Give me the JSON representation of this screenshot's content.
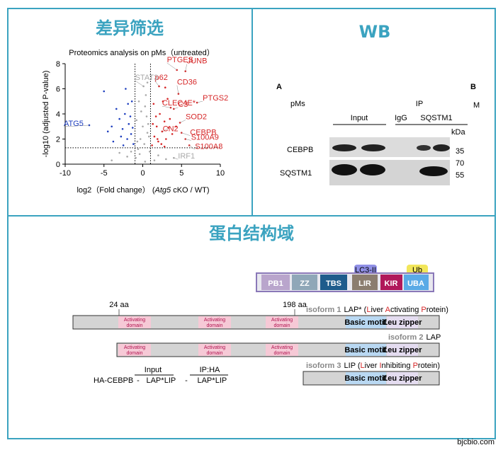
{
  "panels": {
    "volcano_title": "差异筛选",
    "wb_title": "WB",
    "domain_title": "蛋白结构域"
  },
  "chart_data": {
    "type": "scatter",
    "title": "Proteomics analysis on pMs（untreated）",
    "x_label": [
      "log2（Fold change）  (",
      "Atg5",
      " cKO / WT)"
    ],
    "y_label": "-log10 (adjusted P-value)",
    "xlim": [
      -10,
      10
    ],
    "ylim": [
      0,
      8
    ],
    "xticks": [
      -10,
      -5,
      0,
      5,
      10
    ],
    "yticks": [
      0,
      2,
      4,
      6,
      8
    ],
    "thresholds": {
      "x": [
        -1,
        1
      ],
      "y": 1.3
    },
    "series": [
      {
        "color": "#d62728",
        "x": [
          1.2,
          1.5,
          1.8,
          2.0,
          2.2,
          2.5,
          2.8,
          3.0,
          3.2,
          3.5,
          3.8,
          4.0,
          4.3,
          4.6,
          5.0,
          5.5,
          6.0,
          1.4,
          1.7,
          2.1,
          2.6,
          3.3,
          2.9,
          1.3,
          1.9,
          2.4,
          3.6,
          4.8,
          5.5,
          7.0,
          2.8,
          4.4
        ],
        "values": [
          1.5,
          2.2,
          3.0,
          1.8,
          4.0,
          2.6,
          3.4,
          2.0,
          5.2,
          3.6,
          2.4,
          4.4,
          3.0,
          5.6,
          2.5,
          7.4,
          1.5,
          4.8,
          3.8,
          6.2,
          5.0,
          2.9,
          6.1,
          3.2,
          2.0,
          1.6,
          4.5,
          3.3,
          2.0,
          4.9,
          1.4,
          7.5
        ]
      },
      {
        "color": "#1f3fbf",
        "x": [
          -1.2,
          -1.5,
          -1.8,
          -2.0,
          -2.3,
          -2.6,
          -3.0,
          -3.4,
          -4.0,
          -5.0,
          -1.4,
          -1.9,
          -2.8,
          -3.8,
          -1.6,
          -2.2,
          -4.5,
          -1.3,
          -2.5,
          -6.9
        ],
        "values": [
          1.6,
          2.4,
          3.2,
          2.0,
          4.0,
          2.8,
          3.6,
          4.4,
          3.0,
          5.8,
          5.0,
          4.8,
          2.2,
          1.8,
          3.8,
          6.0,
          2.6,
          2.9,
          1.5,
          3.1
        ]
      },
      {
        "color": "#a9a9a9",
        "x": [
          -0.9,
          -0.6,
          -0.3,
          0,
          0.3,
          0.6,
          0.9,
          -0.8,
          -0.4,
          0.2,
          0.5,
          0.8,
          -2,
          -3,
          2,
          3,
          -1.5,
          1.5,
          -0.5,
          0.4,
          0.1,
          -0.2,
          0.7,
          -0.7,
          0.3,
          4,
          -4,
          0.6
        ],
        "values": [
          0.5,
          1.2,
          2.0,
          3.0,
          4.6,
          2.5,
          1.0,
          3.5,
          0.8,
          1.6,
          3.8,
          2.2,
          0.6,
          0.9,
          0.7,
          0.4,
          1.0,
          0.3,
          5.0,
          5.5,
          6.2,
          4.2,
          3.2,
          1.8,
          0.2,
          0.5,
          0.3,
          6.5
        ]
      }
    ],
    "annotations": [
      {
        "text": "PTGES",
        "x": 4.4,
        "y": 7.5,
        "color": "#d62728"
      },
      {
        "text": "JUNB",
        "x": 5.5,
        "y": 7.4,
        "color": "#d62728"
      },
      {
        "text": "p62",
        "x": 2.1,
        "y": 6.2,
        "color": "#d62728"
      },
      {
        "text": "STAT3",
        "x": 0.1,
        "y": 6.2,
        "color": "#a9a9a9"
      },
      {
        "text": "CD36",
        "x": 4.6,
        "y": 5.6,
        "color": "#d62728"
      },
      {
        "text": "PTGS2",
        "x": 7.0,
        "y": 4.9,
        "color": "#d62728"
      },
      {
        "text": "C3",
        "x": 4.0,
        "y": 4.4,
        "color": "#d62728"
      },
      {
        "text": "CLEC4E*",
        "x": 3.6,
        "y": 4.5,
        "color": "#d62728"
      },
      {
        "text": "CEBPB",
        "x": 5.0,
        "y": 2.5,
        "color": "#d62728"
      },
      {
        "text": "CN2",
        "x": 3.3,
        "y": 2.9,
        "color": "#d62728"
      },
      {
        "text": "SOD2",
        "x": 4.8,
        "y": 3.3,
        "color": "#d62728"
      },
      {
        "text": "S100A9",
        "x": 5.5,
        "y": 2.0,
        "color": "#d62728"
      },
      {
        "text": "S100A8",
        "x": 6.0,
        "y": 1.5,
        "color": "#d62728"
      },
      {
        "text": "ATG5",
        "x": -6.9,
        "y": 3.1,
        "color": "#1f3fbf"
      },
      {
        "text": "IRF1",
        "x": 4,
        "y": 0.5,
        "color": "#a9a9a9"
      }
    ]
  },
  "wb": {
    "panel": "A",
    "next_panel": "B",
    "next_sub": "M",
    "cells": "pMs",
    "ip": "IP",
    "input": "Input",
    "igg": "IgG",
    "ip_target": "SQSTM1",
    "kda": "kDa",
    "rows": [
      "CEBPB",
      "SQSTM1"
    ],
    "markers": [
      "70",
      "35",
      "55"
    ]
  },
  "domains": {
    "boxes": [
      "PB1",
      "ZZ",
      "TBS",
      "LIR",
      "KIR",
      "UBA"
    ],
    "tabs": [
      "LC3-II",
      "Ub"
    ],
    "positions": [
      "24 aa",
      "198 aa"
    ],
    "isoforms": [
      {
        "label": "isoform 1",
        "name": [
          "LAP* (",
          "L",
          "iver ",
          "A",
          "ctivating ",
          "P",
          "rotein)"
        ]
      },
      {
        "label": "isoform 2",
        "name": [
          "LAP"
        ]
      },
      {
        "label": "isoform 3",
        "name": [
          "LIP (",
          "L",
          "iver ",
          "I",
          "nhibiting ",
          "P",
          "rotein)"
        ]
      }
    ],
    "activating": [
      "Activating",
      "domain"
    ],
    "basic": "Basic motif",
    "leu": "Leu zipper",
    "legend": {
      "input": "Input",
      "ip": "IP:HA",
      "construct": "HA-CEBPB",
      "lanes": [
        "-",
        "LAP*",
        "LIP",
        "-",
        "LAP*",
        "LIP"
      ]
    }
  },
  "watermark": "bjcbio.com"
}
